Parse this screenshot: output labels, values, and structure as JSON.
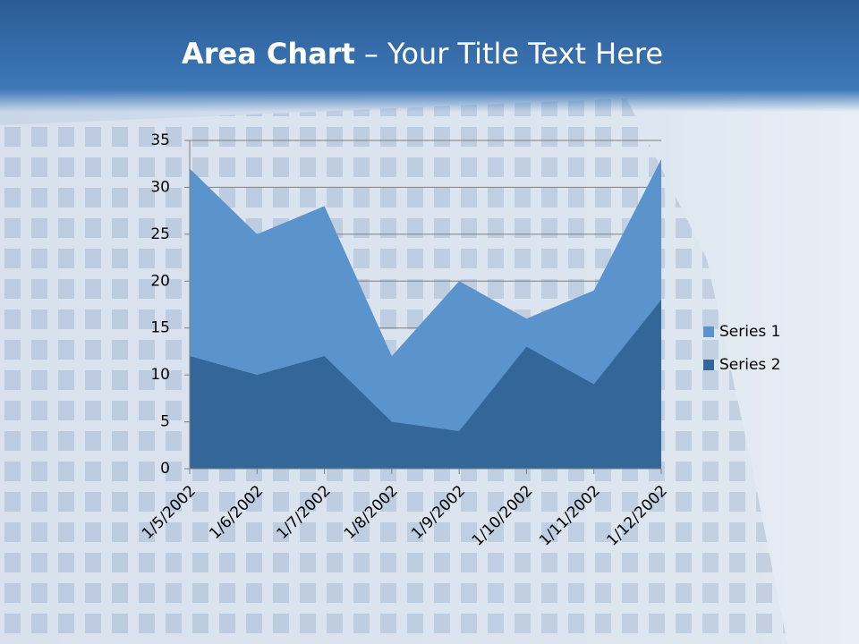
{
  "chart_data": {
    "type": "area",
    "title": "Area Chart",
    "title_suffix": "– Your Title Text Here",
    "categories": [
      "1/5/2002",
      "1/6/2002",
      "1/7/2002",
      "1/8/2002",
      "1/9/2002",
      "1/10/2002",
      "1/11/2002",
      "1/12/2002"
    ],
    "series": [
      {
        "name": "Series 1",
        "color": "#5b93cc",
        "values": [
          32,
          25,
          28,
          12,
          20,
          16,
          19,
          33
        ]
      },
      {
        "name": "Series 2",
        "color": "#336699",
        "values": [
          12,
          10,
          12,
          5,
          4,
          13,
          9,
          18
        ]
      }
    ],
    "ylim": [
      0,
      35
    ],
    "yticks": [
      0,
      5,
      10,
      15,
      20,
      25,
      30,
      35
    ],
    "grid": true,
    "legend": "right"
  }
}
